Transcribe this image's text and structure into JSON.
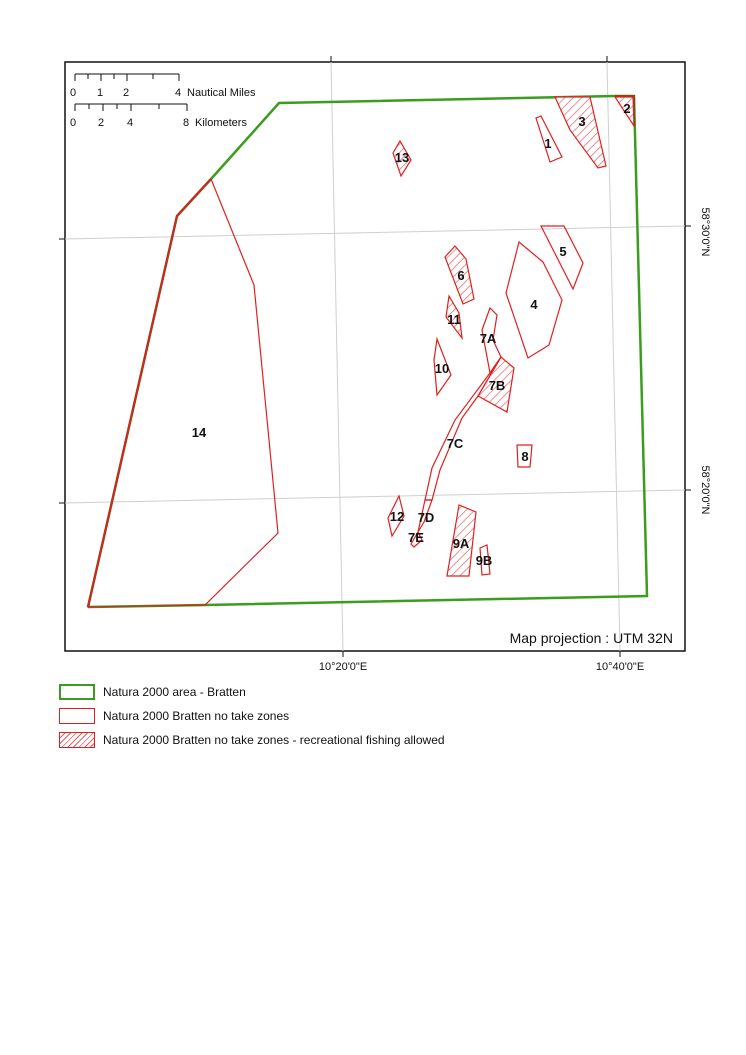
{
  "map": {
    "projection_note": "Map projection : UTM 32N",
    "scalebar_nm": {
      "ticks": [
        "0",
        "1",
        "2",
        "4"
      ],
      "unit": "Nautical Miles"
    },
    "scalebar_km": {
      "ticks": [
        "0",
        "2",
        "4",
        "8"
      ],
      "unit": "Kilometers"
    },
    "longitude_labels": [
      "10°20'0\"E",
      "10°40'0\"E"
    ],
    "latitude_labels": [
      "58°30'0\"N",
      "58°20'0\"N"
    ],
    "zone_labels": [
      "1",
      "2",
      "3",
      "4",
      "5",
      "6",
      "7A",
      "7B",
      "7C",
      "7D",
      "7E",
      "8",
      "9A",
      "9B",
      "10",
      "11",
      "12",
      "13",
      "14"
    ],
    "colors": {
      "natura_boundary": "#3a9d1f",
      "no_take_zone": "#e02020",
      "land_boundary": "#8b4513",
      "graticule": "#d0d0d0"
    }
  },
  "legend": {
    "items": [
      {
        "label": "Natura 2000 area - Bratten",
        "style": "green-outline"
      },
      {
        "label": "Natura 2000 Bratten no take zones",
        "style": "red-outline"
      },
      {
        "label": "Natura 2000 Bratten no take zones - recreational fishing allowed",
        "style": "red-hatched"
      }
    ]
  }
}
